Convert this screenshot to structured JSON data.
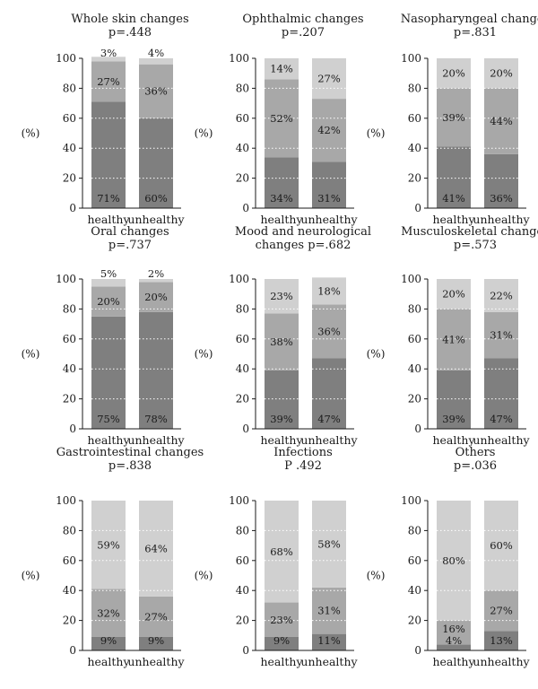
{
  "chart_data": [
    {
      "type": "bar",
      "title": [
        "Whole skin changes",
        "p=.448"
      ],
      "ylabel": "(%)",
      "ylim": [
        0,
        100
      ],
      "yticks": [
        0,
        20,
        40,
        60,
        80,
        100
      ],
      "categories": [
        "healthy",
        "unhealthy"
      ],
      "series": [
        {
          "values": [
            71,
            60
          ],
          "color": "#7f7f7f"
        },
        {
          "values": [
            27,
            36
          ],
          "color": "#a8a8a8"
        },
        {
          "values": [
            3,
            4
          ],
          "color": "#d0d0d0"
        }
      ],
      "labels": [
        [
          "71%",
          "60%"
        ],
        [
          "27%",
          "36%"
        ],
        [
          "3%",
          "4%"
        ]
      ]
    },
    {
      "type": "bar",
      "title": [
        "Ophthalmic changes",
        "p=.207"
      ],
      "ylabel": "(%)",
      "ylim": [
        0,
        100
      ],
      "yticks": [
        0,
        20,
        40,
        60,
        80,
        100
      ],
      "categories": [
        "healthy",
        "unhealthy"
      ],
      "series": [
        {
          "values": [
            34,
            31
          ],
          "color": "#7f7f7f"
        },
        {
          "values": [
            52,
            42
          ],
          "color": "#a8a8a8"
        },
        {
          "values": [
            14,
            27
          ],
          "color": "#d0d0d0"
        }
      ],
      "labels": [
        [
          "34%",
          "31%"
        ],
        [
          "52%",
          "42%"
        ],
        [
          "14%",
          "27%"
        ]
      ]
    },
    {
      "type": "bar",
      "title": [
        "Nasopharyngeal changes",
        "p=.831"
      ],
      "ylabel": "(%)",
      "ylim": [
        0,
        100
      ],
      "yticks": [
        0,
        20,
        40,
        60,
        80,
        100
      ],
      "categories": [
        "healthy",
        "unhealthy"
      ],
      "series": [
        {
          "values": [
            41,
            36
          ],
          "color": "#7f7f7f"
        },
        {
          "values": [
            39,
            44
          ],
          "color": "#a8a8a8"
        },
        {
          "values": [
            20,
            20
          ],
          "color": "#d0d0d0"
        }
      ],
      "labels": [
        [
          "41%",
          "36%"
        ],
        [
          "39%",
          "44%"
        ],
        [
          "20%",
          "20%"
        ]
      ]
    },
    {
      "type": "bar",
      "title": [
        "Oral changes",
        "p=.737"
      ],
      "ylabel": "(%)",
      "ylim": [
        0,
        100
      ],
      "yticks": [
        0,
        20,
        40,
        60,
        80,
        100
      ],
      "categories": [
        "healthy",
        "unhealthy"
      ],
      "series": [
        {
          "values": [
            75,
            78
          ],
          "color": "#7f7f7f"
        },
        {
          "values": [
            20,
            20
          ],
          "color": "#a8a8a8"
        },
        {
          "values": [
            5,
            2
          ],
          "color": "#d0d0d0"
        }
      ],
      "labels": [
        [
          "75%",
          "78%"
        ],
        [
          "20%",
          "20%"
        ],
        [
          "5%",
          "2%"
        ]
      ]
    },
    {
      "type": "bar",
      "title": [
        "Mood and neurological",
        "changes p=.682"
      ],
      "ylabel": "(%)",
      "ylim": [
        0,
        100
      ],
      "yticks": [
        0,
        20,
        40,
        60,
        80,
        100
      ],
      "categories": [
        "healthy",
        "unhealthy"
      ],
      "series": [
        {
          "values": [
            39,
            47
          ],
          "color": "#7f7f7f"
        },
        {
          "values": [
            38,
            36
          ],
          "color": "#a8a8a8"
        },
        {
          "values": [
            23,
            18
          ],
          "color": "#d0d0d0"
        }
      ],
      "labels": [
        [
          "39%",
          "47%"
        ],
        [
          "38%",
          "36%"
        ],
        [
          "23%",
          "18%"
        ]
      ]
    },
    {
      "type": "bar",
      "title": [
        "Musculoskeletal changes",
        "p=.573"
      ],
      "ylabel": "(%)",
      "ylim": [
        0,
        100
      ],
      "yticks": [
        0,
        20,
        40,
        60,
        80,
        100
      ],
      "categories": [
        "healthy",
        "unhealthy"
      ],
      "series": [
        {
          "values": [
            39,
            47
          ],
          "color": "#7f7f7f"
        },
        {
          "values": [
            41,
            31
          ],
          "color": "#a8a8a8"
        },
        {
          "values": [
            20,
            22
          ],
          "color": "#d0d0d0"
        }
      ],
      "labels": [
        [
          "39%",
          "47%"
        ],
        [
          "41%",
          "31%"
        ],
        [
          "20%",
          "22%"
        ]
      ]
    },
    {
      "type": "bar",
      "title": [
        "Gastrointestinal changes",
        "p=.838"
      ],
      "ylabel": "(%)",
      "ylim": [
        0,
        100
      ],
      "yticks": [
        0,
        20,
        40,
        60,
        80,
        100
      ],
      "categories": [
        "healthy",
        "unhealthy"
      ],
      "series": [
        {
          "values": [
            9,
            9
          ],
          "color": "#7f7f7f"
        },
        {
          "values": [
            32,
            27
          ],
          "color": "#a8a8a8"
        },
        {
          "values": [
            59,
            64
          ],
          "color": "#d0d0d0"
        }
      ],
      "labels": [
        [
          "9%",
          "9%"
        ],
        [
          "32%",
          "27%"
        ],
        [
          "59%",
          "64%"
        ]
      ]
    },
    {
      "type": "bar",
      "title": [
        "Infections",
        "P .492"
      ],
      "ylabel": "(%)",
      "ylim": [
        0,
        100
      ],
      "yticks": [
        0,
        20,
        40,
        60,
        80,
        100
      ],
      "categories": [
        "healthy",
        "unhealthy"
      ],
      "series": [
        {
          "values": [
            9,
            11
          ],
          "color": "#7f7f7f"
        },
        {
          "values": [
            23,
            31
          ],
          "color": "#a8a8a8"
        },
        {
          "values": [
            68,
            58
          ],
          "color": "#d0d0d0"
        }
      ],
      "labels": [
        [
          "9%",
          "11%"
        ],
        [
          "23%",
          "31%"
        ],
        [
          "68%",
          "58%"
        ]
      ]
    },
    {
      "type": "bar",
      "title": [
        "Others",
        "p=.036"
      ],
      "ylabel": "(%)",
      "ylim": [
        0,
        100
      ],
      "yticks": [
        0,
        20,
        40,
        60,
        80,
        100
      ],
      "categories": [
        "healthy",
        "unhealthy"
      ],
      "series": [
        {
          "values": [
            4,
            13
          ],
          "color": "#7f7f7f"
        },
        {
          "values": [
            16,
            27
          ],
          "color": "#a8a8a8"
        },
        {
          "values": [
            80,
            60
          ],
          "color": "#d0d0d0"
        }
      ],
      "labels": [
        [
          "4%",
          "13%"
        ],
        [
          "16%",
          "27%"
        ],
        [
          "80%",
          "60%"
        ]
      ]
    }
  ]
}
